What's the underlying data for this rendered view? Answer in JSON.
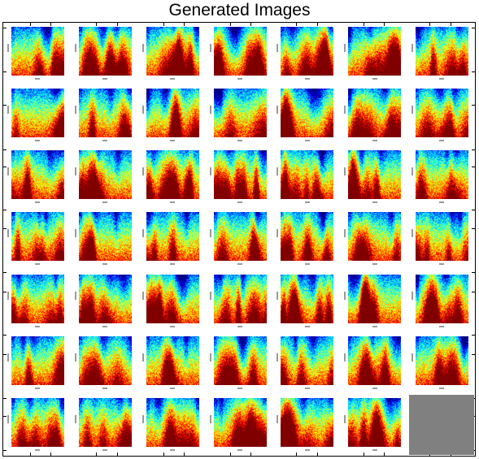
{
  "title": "Generated Images",
  "grid": {
    "rows": 7,
    "cols": 7,
    "filled": 48
  },
  "colors": {
    "background": "#ffffff",
    "frame": "#000000",
    "empty_cell": "#808080"
  }
}
